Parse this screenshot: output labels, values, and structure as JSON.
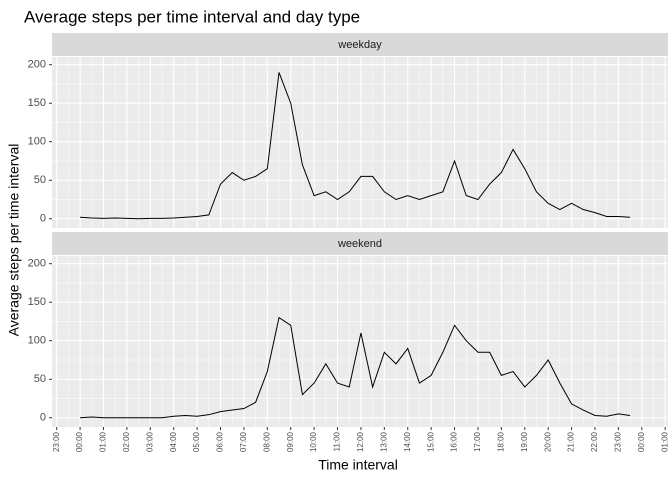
{
  "chart_data": {
    "type": "line",
    "facet": true,
    "title": "Average steps per time interval and day type",
    "x_label": "Time interval",
    "y_label": "Average steps per time interval",
    "x": [
      0,
      0.5,
      1,
      1.5,
      2,
      2.5,
      3,
      3.5,
      4,
      4.5,
      5,
      5.5,
      6,
      6.5,
      7,
      7.5,
      8,
      8.5,
      9,
      9.5,
      10,
      10.5,
      11,
      11.5,
      12,
      12.5,
      13,
      13.5,
      14,
      14.5,
      15,
      15.5,
      16,
      16.5,
      17,
      17.5,
      18,
      18.5,
      19,
      19.5,
      20,
      20.5,
      21,
      21.5,
      22,
      22.5,
      23,
      23.5
    ],
    "series": [
      {
        "name": "weekday",
        "color": "#000000",
        "values": [
          2,
          1,
          0.5,
          1,
          0.5,
          0,
          0.5,
          0.5,
          1,
          2,
          3,
          5,
          45,
          60,
          50,
          55,
          65,
          190,
          150,
          70,
          30,
          35,
          25,
          35,
          55,
          55,
          35,
          25,
          30,
          25,
          30,
          35,
          75,
          30,
          25,
          45,
          60,
          90,
          65,
          35,
          20,
          12,
          20,
          12,
          8,
          3,
          3,
          2
        ]
      },
      {
        "name": "weekend",
        "color": "#000000",
        "values": [
          0,
          1,
          0,
          0,
          0,
          0,
          0,
          0,
          2,
          3,
          2,
          4,
          8,
          10,
          12,
          20,
          60,
          130,
          120,
          30,
          45,
          70,
          45,
          40,
          110,
          40,
          85,
          70,
          90,
          45,
          55,
          85,
          120,
          100,
          85,
          85,
          55,
          60,
          40,
          55,
          75,
          45,
          18,
          10,
          3,
          2,
          5,
          3
        ]
      }
    ],
    "xlim": [
      -1.2,
      25.12
    ],
    "xticks": [
      {
        "value": -1,
        "label": "23:00"
      },
      {
        "value": 0,
        "label": "00:00"
      },
      {
        "value": 1,
        "label": "01:00"
      },
      {
        "value": 2,
        "label": "02:00"
      },
      {
        "value": 3,
        "label": "03:00"
      },
      {
        "value": 4,
        "label": "04:00"
      },
      {
        "value": 5,
        "label": "05:00"
      },
      {
        "value": 6,
        "label": "06:00"
      },
      {
        "value": 7,
        "label": "07:00"
      },
      {
        "value": 8,
        "label": "08:00"
      },
      {
        "value": 9,
        "label": "09:00"
      },
      {
        "value": 10,
        "label": "10:00"
      },
      {
        "value": 11,
        "label": "11:00"
      },
      {
        "value": 12,
        "label": "12:00"
      },
      {
        "value": 13,
        "label": "13:00"
      },
      {
        "value": 14,
        "label": "14:00"
      },
      {
        "value": 15,
        "label": "15:00"
      },
      {
        "value": 16,
        "label": "16:00"
      },
      {
        "value": 17,
        "label": "17:00"
      },
      {
        "value": 18,
        "label": "18:00"
      },
      {
        "value": 19,
        "label": "19:00"
      },
      {
        "value": 20,
        "label": "20:00"
      },
      {
        "value": 21,
        "label": "21:00"
      },
      {
        "value": 22,
        "label": "22:00"
      },
      {
        "value": 23,
        "label": "23:00"
      },
      {
        "value": 24,
        "label": "00:00"
      },
      {
        "value": 25,
        "label": "01:00"
      }
    ],
    "ylim": [
      -12,
      210
    ],
    "yticks": [
      0,
      50,
      100,
      150,
      200
    ],
    "grid": true
  }
}
